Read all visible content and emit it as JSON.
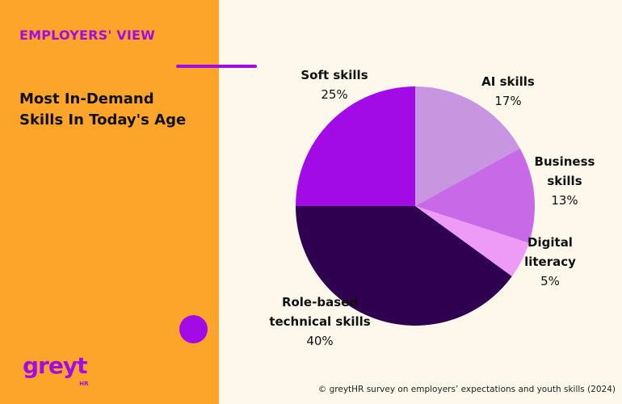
{
  "panel": {
    "eyebrow": "EMPLOYERS' VIEW",
    "headline_lines": [
      "Most In-Demand",
      "Skills In Today's Age"
    ]
  },
  "brand": {
    "logo_text": "greyt",
    "logo_sub": "HR"
  },
  "footnote": "© greytHR survey on employers’ expectations and youth skills (2024)",
  "colors": {
    "left_bg": "#FDA42A",
    "right_bg": "#FEF7EC",
    "accent": "#A30BE6"
  },
  "chart_data": {
    "type": "pie",
    "start_angle_deg": 0,
    "direction": "clockwise",
    "slices": [
      {
        "name": "AI skills",
        "label_lines": [
          "AI skills"
        ],
        "value": 17,
        "value_label": "17%",
        "color": "#C896E0"
      },
      {
        "name": "Business skills",
        "label_lines": [
          "Business",
          "skills"
        ],
        "value": 13,
        "value_label": "13%",
        "color": "#C86AE8"
      },
      {
        "name": "Digital literacy",
        "label_lines": [
          "Digital",
          "literacy"
        ],
        "value": 5,
        "value_label": "5%",
        "color": "#EE9BF8"
      },
      {
        "name": "Role-based technical skills",
        "label_lines": [
          "Role-based",
          "technical skills"
        ],
        "value": 40,
        "value_label": "40%",
        "color": "#300050"
      },
      {
        "name": "Soft skills",
        "label_lines": [
          "Soft skills"
        ],
        "value": 25,
        "value_label": "25%",
        "color": "#A30BE6"
      }
    ]
  }
}
